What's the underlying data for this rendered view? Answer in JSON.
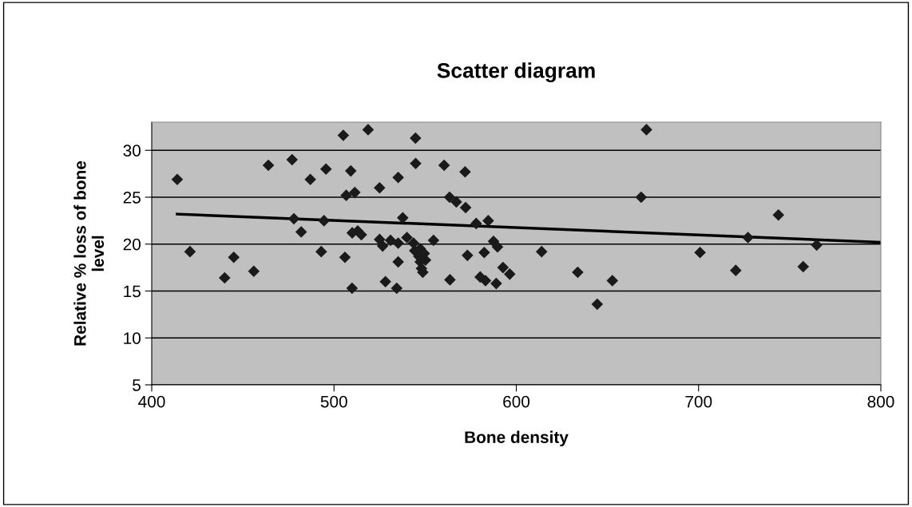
{
  "chart_data": {
    "type": "scatter",
    "title": "Scatter diagram",
    "xlabel": "Bone density",
    "ylabel": "Relative % loss of bone\nlevel",
    "xlim": [
      400,
      800
    ],
    "xticks": [
      400,
      500,
      600,
      700,
      800
    ],
    "ylim": [
      5,
      33
    ],
    "yticks": [
      5,
      10,
      15,
      20,
      25,
      30
    ],
    "grid": "y",
    "marker": "diamond",
    "series": [
      {
        "color": "#1a1a1a",
        "x": [
          414,
          421,
          440,
          445,
          456,
          464,
          477,
          478,
          482,
          487,
          495.6,
          505.1,
          518.7,
          544.7,
          509.2,
          535.2,
          544.8,
          560.4,
          571.9,
          506.7,
          511.4,
          525,
          563.4,
          567.1,
          572.2,
          494.5,
          537.7,
          578,
          584.6,
          510,
          513,
          515,
          525,
          526.7,
          531,
          535.2,
          540,
          543.6,
          544.3,
          547.3,
          546.5,
          549.5,
          547.3,
          550.2,
          548.7,
          548,
          554.6,
          493,
          506,
          535.2,
          509.9,
          528.2,
          534.4,
          563.6,
          573.2,
          582.4,
          587.5,
          589.7,
          580.2,
          583.1,
          589,
          592.7,
          596.4,
          613.9,
          633.7,
          652.7,
          644.4,
          668.5,
          671.4,
          700.8,
          720.4,
          727.1,
          743.8,
          757.4,
          764.8
        ],
        "values": [
          26.9,
          19.2,
          16.4,
          18.6,
          17.1,
          28.4,
          29.0,
          22.7,
          21.3,
          26.9,
          28.0,
          31.6,
          32.2,
          31.3,
          27.8,
          27.1,
          28.6,
          28.4,
          27.7,
          25.2,
          25.5,
          26.0,
          25.0,
          24.5,
          23.9,
          22.5,
          22.8,
          22.2,
          22.5,
          21.2,
          21.4,
          21.0,
          20.5,
          19.8,
          20.4,
          20.1,
          20.7,
          20.1,
          19.3,
          19.5,
          18.7,
          19.0,
          18.1,
          18.3,
          17.0,
          17.4,
          20.4,
          19.2,
          18.6,
          18.1,
          15.3,
          16.0,
          15.3,
          16.2,
          18.8,
          19.1,
          20.3,
          19.7,
          16.5,
          16.1,
          15.8,
          17.5,
          16.8,
          19.2,
          17.0,
          16.1,
          13.6,
          25.0,
          32.2,
          19.1,
          17.2,
          20.7,
          23.1,
          17.6,
          19.9
        ]
      },
      {
        "type": "line",
        "color": "#000000",
        "x": [
          414,
          800
        ],
        "values": [
          23.2,
          20.2
        ],
        "marker": "none",
        "line_style": "solid"
      }
    ]
  }
}
